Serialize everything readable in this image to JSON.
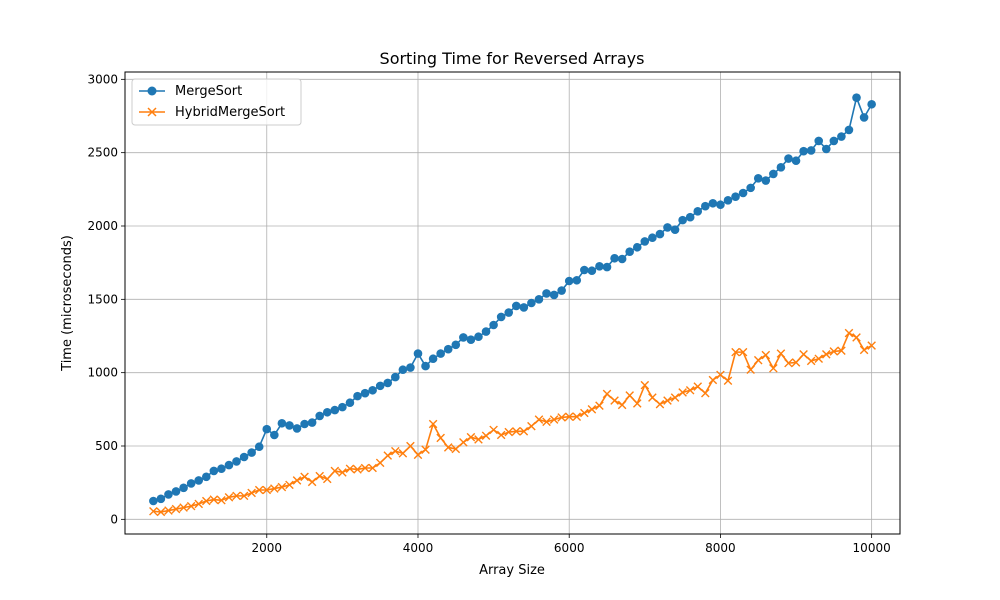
{
  "chart_data": {
    "type": "line",
    "title": "Sorting Time for Reversed Arrays",
    "xlabel": "Array Size",
    "ylabel": "Time (microseconds)",
    "xlim": [
      0,
      10500
    ],
    "ylim": [
      0,
      3000
    ],
    "xticks": [
      2000,
      4000,
      6000,
      8000,
      10000
    ],
    "yticks": [
      0,
      500,
      1000,
      1500,
      2000,
      2500,
      3000
    ],
    "grid": true,
    "legend_position": "top-left",
    "x": [
      500,
      600,
      700,
      800,
      900,
      1000,
      1100,
      1200,
      1300,
      1400,
      1500,
      1600,
      1700,
      1800,
      1900,
      2000,
      2100,
      2200,
      2300,
      2400,
      2500,
      2600,
      2700,
      2800,
      2900,
      3000,
      3100,
      3200,
      3300,
      3400,
      3500,
      3600,
      3700,
      3800,
      3900,
      4000,
      4100,
      4200,
      4300,
      4400,
      4500,
      4600,
      4700,
      4800,
      4900,
      5000,
      5100,
      5200,
      5300,
      5400,
      5500,
      5600,
      5700,
      5800,
      5900,
      6000,
      6100,
      6200,
      6300,
      6400,
      6500,
      6600,
      6700,
      6800,
      6900,
      7000,
      7100,
      7200,
      7300,
      7400,
      7500,
      7600,
      7700,
      7800,
      7900,
      8000,
      8100,
      8200,
      8300,
      8400,
      8500,
      8600,
      8700,
      8800,
      8900,
      9000,
      9100,
      9200,
      9300,
      9400,
      9500,
      9600,
      9700,
      9800,
      9900,
      10000
    ],
    "series": [
      {
        "name": "MergeSort",
        "color": "#1f77b4",
        "marker": "circle",
        "values": [
          125,
          140,
          170,
          190,
          215,
          245,
          265,
          290,
          330,
          345,
          370,
          395,
          425,
          455,
          495,
          615,
          575,
          655,
          640,
          620,
          650,
          660,
          705,
          730,
          745,
          765,
          795,
          840,
          860,
          880,
          910,
          930,
          970,
          1020,
          1035,
          1130,
          1045,
          1095,
          1130,
          1160,
          1190,
          1240,
          1225,
          1245,
          1280,
          1325,
          1380,
          1410,
          1455,
          1445,
          1475,
          1500,
          1540,
          1530,
          1560,
          1625,
          1630,
          1700,
          1695,
          1725,
          1720,
          1780,
          1775,
          1825,
          1855,
          1895,
          1920,
          1945,
          1990,
          1975,
          2040,
          2060,
          2100,
          2135,
          2155,
          2145,
          2175,
          2200,
          2225,
          2260,
          2325,
          2310,
          2355,
          2400,
          2460,
          2445,
          2510,
          2515,
          2580,
          2525,
          2580,
          2610,
          2655,
          2875,
          2740,
          2830
        ]
      },
      {
        "name": "HybridMergeSort",
        "color": "#ff7f0e",
        "marker": "x",
        "values": [
          55,
          50,
          60,
          70,
          80,
          90,
          105,
          125,
          135,
          130,
          150,
          160,
          160,
          180,
          200,
          200,
          210,
          220,
          235,
          265,
          290,
          255,
          295,
          275,
          330,
          320,
          345,
          340,
          350,
          350,
          385,
          435,
          465,
          450,
          500,
          440,
          475,
          650,
          555,
          490,
          480,
          525,
          560,
          545,
          570,
          610,
          575,
          595,
          600,
          600,
          635,
          680,
          665,
          680,
          695,
          700,
          700,
          725,
          750,
          775,
          855,
          810,
          780,
          845,
          790,
          915,
          830,
          785,
          810,
          830,
          865,
          880,
          905,
          860,
          950,
          985,
          945,
          1140,
          1140,
          1020,
          1085,
          1120,
          1030,
          1130,
          1065,
          1070,
          1125,
          1080,
          1095,
          1125,
          1145,
          1150,
          1270,
          1240,
          1155,
          1185
        ]
      }
    ]
  }
}
